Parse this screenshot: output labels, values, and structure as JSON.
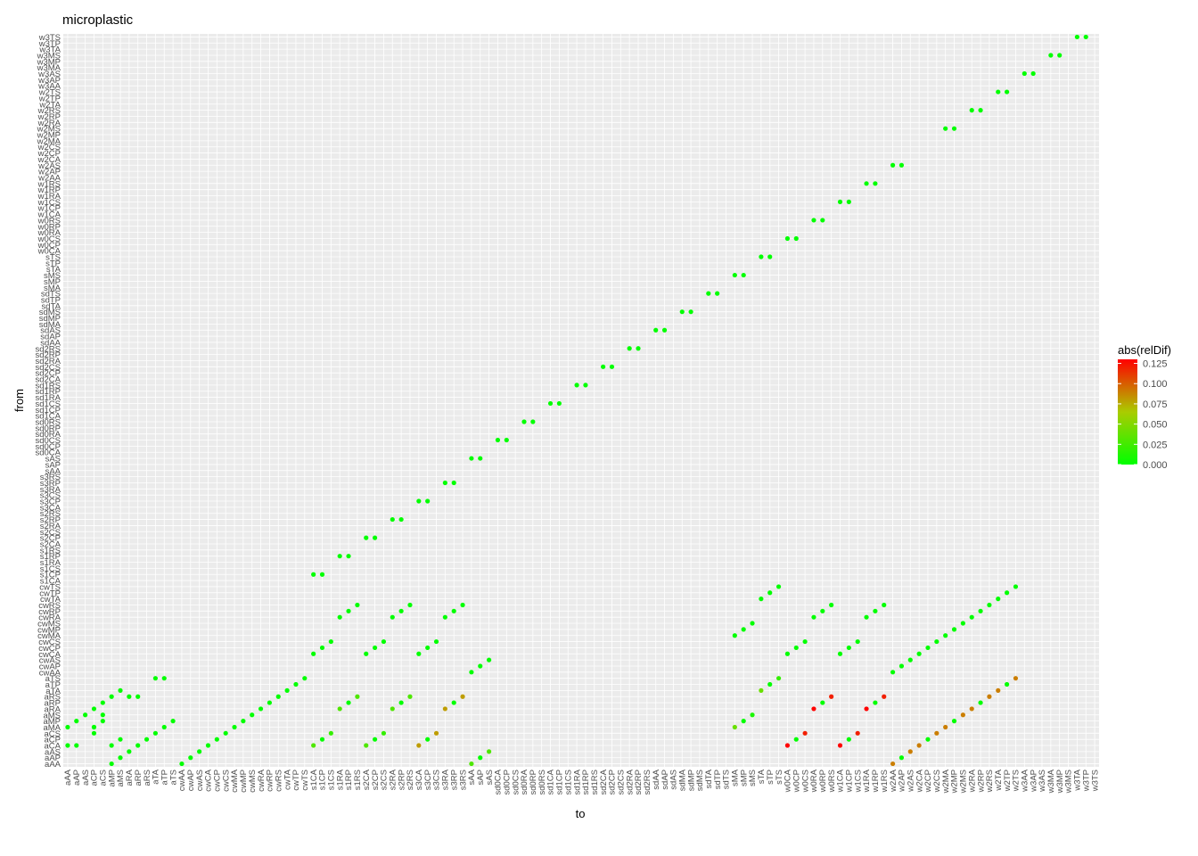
{
  "chart_data": {
    "type": "scatter",
    "title": "microplastic",
    "xlabel": "to",
    "ylabel": "from",
    "legend": {
      "title": "abs(relDif)",
      "position": "right",
      "ticks": [
        "0.000",
        "0.025",
        "0.050",
        "0.075",
        "0.100",
        "0.125"
      ],
      "tick_values": [
        0,
        0.025,
        0.05,
        0.075,
        0.1,
        0.125
      ],
      "range": [
        0,
        0.13
      ],
      "colors": [
        "#00ff00",
        "#aacc00",
        "#ff0000"
      ]
    },
    "panel_background": "#ebebeb",
    "grid": true,
    "x_categories": [
      "aAA",
      "aAP",
      "aAS",
      "aCP",
      "aCS",
      "aMP",
      "aMS",
      "aRA",
      "aRP",
      "aRS",
      "aTA",
      "aTP",
      "aTS",
      "cwAA",
      "cwAP",
      "cwAS",
      "cwCA",
      "cwCP",
      "cwCS",
      "cwMA",
      "cwMP",
      "cwMS",
      "cwRA",
      "cwRP",
      "cwRS",
      "cwTA",
      "cwTP",
      "cwTS",
      "s1CA",
      "s1CP",
      "s1CS",
      "s1RA",
      "s1RP",
      "s1RS",
      "s2CA",
      "s2CP",
      "s2CS",
      "s2RA",
      "s2RP",
      "s2RS",
      "s3CA",
      "s3CP",
      "s3CS",
      "s3RA",
      "s3RP",
      "s3RS",
      "sAA",
      "sAP",
      "sAS",
      "sd0CA",
      "sd0CP",
      "sd0CS",
      "sd0RA",
      "sd0RP",
      "sd0RS",
      "sd1CA",
      "sd1CP",
      "sd1CS",
      "sd1RA",
      "sd1RP",
      "sd1RS",
      "sd2CA",
      "sd2CP",
      "sd2CS",
      "sd2RA",
      "sd2RP",
      "sd2RS",
      "sdAA",
      "sdAP",
      "sdAS",
      "sdMA",
      "sdMP",
      "sdMS",
      "sdTA",
      "sdTP",
      "sdTS",
      "sMA",
      "sMP",
      "sMS",
      "sTA",
      "sTP",
      "sTS",
      "w0CA",
      "w0CP",
      "w0CS",
      "w0RA",
      "w0RP",
      "w0RS",
      "w1CA",
      "w1CP",
      "w1CS",
      "w1RA",
      "w1RP",
      "w1RS",
      "w2AA",
      "w2AP",
      "w2AS",
      "w2CA",
      "w2CP",
      "w2CS",
      "w2MA",
      "w2MP",
      "w2MS",
      "w2RA",
      "w2RP",
      "w2RS",
      "w2TA",
      "w2TP",
      "w2TS",
      "w3AA",
      "w3AP",
      "w3AS",
      "w3MA",
      "w3MP",
      "w3MS",
      "w3TA",
      "w3TP",
      "w3TS"
    ],
    "y_categories": [
      "aAA",
      "aAP",
      "aAS",
      "aCA",
      "aCP",
      "aCS",
      "aMA",
      "aMP",
      "aMS",
      "aRA",
      "aRP",
      "aRS",
      "aTA",
      "aTP",
      "aTS",
      "cwAA",
      "cwAP",
      "cwAS",
      "cwCA",
      "cwCP",
      "cwCS",
      "cwMA",
      "cwMP",
      "cwMS",
      "cwRA",
      "cwRP",
      "cwRS",
      "cwTA",
      "cwTP",
      "cwTS",
      "s1CA",
      "s1CP",
      "s1CS",
      "s1RA",
      "s1RP",
      "s1RS",
      "s2CA",
      "s2CP",
      "s2CS",
      "s2RA",
      "s2RP",
      "s2RS",
      "s3CA",
      "s3CP",
      "s3CS",
      "s3RA",
      "s3RP",
      "s3RS",
      "sAA",
      "sAP",
      "sAS",
      "sd0CA",
      "sd0CP",
      "sd0CS",
      "sd0RA",
      "sd0RP",
      "sd0RS",
      "sd1CA",
      "sd1CP",
      "sd1CS",
      "sd1RA",
      "sd1RP",
      "sd1RS",
      "sd2CA",
      "sd2CP",
      "sd2CS",
      "sd2RA",
      "sd2RP",
      "sd2RS",
      "sdAA",
      "sdAP",
      "sdAS",
      "sdMA",
      "sdMP",
      "sdMS",
      "sdTA",
      "sdTP",
      "sdTS",
      "sMA",
      "sMP",
      "sMS",
      "sTA",
      "sTP",
      "sTS",
      "w0CA",
      "w0CP",
      "w0CS",
      "w0RA",
      "w0RP",
      "w0RS",
      "w1CA",
      "w1CP",
      "w1CS",
      "w1RA",
      "w1RP",
      "w1RS",
      "w2AA",
      "w2AP",
      "w2AS",
      "w2CA",
      "w2CP",
      "w2CS",
      "w2MA",
      "w2MP",
      "w2MS",
      "w2RA",
      "w2RP",
      "w2RS",
      "w2TA",
      "w2TP",
      "w2TS",
      "w3AA",
      "w3AP",
      "w3AS",
      "w3MA",
      "w3MP",
      "w3MS",
      "w3TA",
      "w3TP",
      "w3TS"
    ],
    "points": [
      {
        "x": "aAA",
        "y": "aMA",
        "v": 0
      },
      {
        "x": "aAA",
        "y": "aCA",
        "v": 0
      },
      {
        "x": "aAP",
        "y": "aCA",
        "v": 0
      },
      {
        "x": "aAP",
        "y": "aMP",
        "v": 0
      },
      {
        "x": "aAS",
        "y": "aMS",
        "v": 0
      },
      {
        "x": "aCP",
        "y": "aCS",
        "v": 0
      },
      {
        "x": "aCP",
        "y": "aMA",
        "v": 0
      },
      {
        "x": "aCP",
        "y": "aMA",
        "v": 0
      },
      {
        "x": "aCP",
        "y": "aRA",
        "v": 0
      },
      {
        "x": "aCS",
        "y": "aMP",
        "v": 0
      },
      {
        "x": "aCS",
        "y": "aRP",
        "v": 0
      },
      {
        "x": "aCS",
        "y": "aMS",
        "v": 0
      },
      {
        "x": "aMP",
        "y": "aAA",
        "v": 0
      },
      {
        "x": "aMP",
        "y": "aCA",
        "v": 0
      },
      {
        "x": "aMP",
        "y": "aRS",
        "v": 0
      },
      {
        "x": "aMS",
        "y": "aAP",
        "v": 0
      },
      {
        "x": "aMS",
        "y": "aCP",
        "v": 0
      },
      {
        "x": "aMS",
        "y": "aTA",
        "v": 0
      },
      {
        "x": "aRA",
        "y": "aAS",
        "v": 0
      },
      {
        "x": "aRA",
        "y": "aRS",
        "v": 0
      },
      {
        "x": "aRP",
        "y": "aCA",
        "v": 0
      },
      {
        "x": "aRP",
        "y": "aRS",
        "v": 0
      },
      {
        "x": "aRS",
        "y": "aCP",
        "v": 0
      },
      {
        "x": "aTA",
        "y": "aCS",
        "v": 0
      },
      {
        "x": "aTA",
        "y": "aTS",
        "v": 0
      },
      {
        "x": "aTP",
        "y": "aMA",
        "v": 0
      },
      {
        "x": "aTP",
        "y": "aTS",
        "v": 0
      },
      {
        "x": "aTS",
        "y": "aMP",
        "v": 0
      },
      {
        "x": "cwAA",
        "y": "aAA",
        "v": 0
      },
      {
        "x": "cwAP",
        "y": "aAP",
        "v": 0
      },
      {
        "x": "cwAS",
        "y": "aAS",
        "v": 0
      },
      {
        "x": "cwCA",
        "y": "aCA",
        "v": 0
      },
      {
        "x": "cwCP",
        "y": "aCP",
        "v": 0
      },
      {
        "x": "cwCS",
        "y": "aCS",
        "v": 0
      },
      {
        "x": "cwMA",
        "y": "aMA",
        "v": 0
      },
      {
        "x": "cwMP",
        "y": "aMP",
        "v": 0
      },
      {
        "x": "cwMS",
        "y": "aMS",
        "v": 0
      },
      {
        "x": "cwRA",
        "y": "aRA",
        "v": 0
      },
      {
        "x": "cwRP",
        "y": "aRP",
        "v": 0
      },
      {
        "x": "cwRS",
        "y": "aRS",
        "v": 0
      },
      {
        "x": "cwTA",
        "y": "aTA",
        "v": 0
      },
      {
        "x": "cwTP",
        "y": "aTP",
        "v": 0
      },
      {
        "x": "cwTS",
        "y": "aTS",
        "v": 0
      },
      {
        "x": "s1CA",
        "y": "aCA",
        "v": 0.03
      },
      {
        "x": "s1CP",
        "y": "aCP",
        "v": 0
      },
      {
        "x": "s1CS",
        "y": "aCS",
        "v": 0.02
      },
      {
        "x": "s1RA",
        "y": "aRA",
        "v": 0.03
      },
      {
        "x": "s1RP",
        "y": "aRP",
        "v": 0
      },
      {
        "x": "s1RS",
        "y": "aRS",
        "v": 0.03
      },
      {
        "x": "s2CA",
        "y": "aCA",
        "v": 0.03
      },
      {
        "x": "s2CP",
        "y": "aCP",
        "v": 0
      },
      {
        "x": "s2CS",
        "y": "aCS",
        "v": 0.02
      },
      {
        "x": "s2RA",
        "y": "aRA",
        "v": 0.03
      },
      {
        "x": "s2RP",
        "y": "aRP",
        "v": 0
      },
      {
        "x": "s2RS",
        "y": "aRS",
        "v": 0.03
      },
      {
        "x": "s3CA",
        "y": "aCA",
        "v": 0.08
      },
      {
        "x": "s3CP",
        "y": "aCP",
        "v": 0
      },
      {
        "x": "s3CS",
        "y": "aCS",
        "v": 0.08
      },
      {
        "x": "s3RA",
        "y": "aRA",
        "v": 0.08
      },
      {
        "x": "s3RP",
        "y": "aRP",
        "v": 0
      },
      {
        "x": "s3RS",
        "y": "aRS",
        "v": 0.08
      },
      {
        "x": "sAA",
        "y": "aAA",
        "v": 0.03
      },
      {
        "x": "sAP",
        "y": "aAP",
        "v": 0
      },
      {
        "x": "sAS",
        "y": "aAS",
        "v": 0.03
      },
      {
        "x": "s1CA",
        "y": "cwCA",
        "v": 0
      },
      {
        "x": "s1CP",
        "y": "cwCP",
        "v": 0
      },
      {
        "x": "s1CS",
        "y": "cwCS",
        "v": 0
      },
      {
        "x": "s1RA",
        "y": "cwRA",
        "v": 0
      },
      {
        "x": "s1RP",
        "y": "cwRP",
        "v": 0
      },
      {
        "x": "s1RS",
        "y": "cwRS",
        "v": 0
      },
      {
        "x": "s2CA",
        "y": "cwCA",
        "v": 0
      },
      {
        "x": "s2CP",
        "y": "cwCP",
        "v": 0
      },
      {
        "x": "s2CS",
        "y": "cwCS",
        "v": 0
      },
      {
        "x": "s2RA",
        "y": "cwRA",
        "v": 0
      },
      {
        "x": "s2RP",
        "y": "cwRP",
        "v": 0
      },
      {
        "x": "s2RS",
        "y": "cwRS",
        "v": 0
      },
      {
        "x": "s3CA",
        "y": "cwCA",
        "v": 0
      },
      {
        "x": "s3CP",
        "y": "cwCP",
        "v": 0
      },
      {
        "x": "s3CS",
        "y": "cwCS",
        "v": 0
      },
      {
        "x": "s3RA",
        "y": "cwRA",
        "v": 0
      },
      {
        "x": "s3RP",
        "y": "cwRP",
        "v": 0
      },
      {
        "x": "s3RS",
        "y": "cwRS",
        "v": 0
      },
      {
        "x": "sAA",
        "y": "cwAA",
        "v": 0
      },
      {
        "x": "sAP",
        "y": "cwAP",
        "v": 0
      },
      {
        "x": "sAS",
        "y": "cwAS",
        "v": 0
      },
      {
        "x": "s1CA",
        "y": "s1CP",
        "v": 0
      },
      {
        "x": "s1CP",
        "y": "s1CP",
        "v": 0
      },
      {
        "x": "s1RA",
        "y": "s1RP",
        "v": 0
      },
      {
        "x": "s1RP",
        "y": "s1RP",
        "v": 0
      },
      {
        "x": "s2CA",
        "y": "s2CP",
        "v": 0
      },
      {
        "x": "s2CP",
        "y": "s2CP",
        "v": 0
      },
      {
        "x": "s2RA",
        "y": "s2RP",
        "v": 0
      },
      {
        "x": "s2RP",
        "y": "s2RP",
        "v": 0
      },
      {
        "x": "s3CA",
        "y": "s3CP",
        "v": 0
      },
      {
        "x": "s3CP",
        "y": "s3CP",
        "v": 0
      },
      {
        "x": "s3RA",
        "y": "s3RP",
        "v": 0
      },
      {
        "x": "s3RP",
        "y": "s3RP",
        "v": 0
      },
      {
        "x": "sAA",
        "y": "sAS",
        "v": 0
      },
      {
        "x": "sAP",
        "y": "sAS",
        "v": 0
      },
      {
        "x": "sd0CA",
        "y": "sd0CS",
        "v": 0
      },
      {
        "x": "sd0CP",
        "y": "sd0CS",
        "v": 0
      },
      {
        "x": "sd0RA",
        "y": "sd0RS",
        "v": 0
      },
      {
        "x": "sd0RP",
        "y": "sd0RS",
        "v": 0
      },
      {
        "x": "sd1CA",
        "y": "sd1CS",
        "v": 0
      },
      {
        "x": "sd1CP",
        "y": "sd1CS",
        "v": 0
      },
      {
        "x": "sd1RA",
        "y": "sd1RS",
        "v": 0
      },
      {
        "x": "sd1RP",
        "y": "sd1RS",
        "v": 0
      },
      {
        "x": "sd2CA",
        "y": "sd2CS",
        "v": 0
      },
      {
        "x": "sd2CP",
        "y": "sd2CS",
        "v": 0
      },
      {
        "x": "sd2RA",
        "y": "sd2RS",
        "v": 0
      },
      {
        "x": "sd2RP",
        "y": "sd2RS",
        "v": 0
      },
      {
        "x": "sdAA",
        "y": "sdAS",
        "v": 0
      },
      {
        "x": "sdAP",
        "y": "sdAS",
        "v": 0
      },
      {
        "x": "sdMA",
        "y": "sdMS",
        "v": 0
      },
      {
        "x": "sdMP",
        "y": "sdMS",
        "v": 0
      },
      {
        "x": "sdTA",
        "y": "sdTS",
        "v": 0
      },
      {
        "x": "sdTP",
        "y": "sdTS",
        "v": 0
      },
      {
        "x": "sMA",
        "y": "sMS",
        "v": 0
      },
      {
        "x": "sMP",
        "y": "sMS",
        "v": 0
      },
      {
        "x": "sTA",
        "y": "sTS",
        "v": 0
      },
      {
        "x": "sTP",
        "y": "sTS",
        "v": 0
      },
      {
        "x": "w0CA",
        "y": "w0CS",
        "v": 0
      },
      {
        "x": "w0CP",
        "y": "w0CS",
        "v": 0
      },
      {
        "x": "w0RA",
        "y": "w0RS",
        "v": 0
      },
      {
        "x": "w0RP",
        "y": "w0RS",
        "v": 0
      },
      {
        "x": "w1CA",
        "y": "w1CS",
        "v": 0
      },
      {
        "x": "w1CP",
        "y": "w1CS",
        "v": 0
      },
      {
        "x": "w1RA",
        "y": "w1RS",
        "v": 0
      },
      {
        "x": "w1RP",
        "y": "w1RS",
        "v": 0
      },
      {
        "x": "w2AA",
        "y": "w2AS",
        "v": 0
      },
      {
        "x": "w2AP",
        "y": "w2AS",
        "v": 0
      },
      {
        "x": "w2MA",
        "y": "w2MS",
        "v": 0
      },
      {
        "x": "w2MP",
        "y": "w2MS",
        "v": 0
      },
      {
        "x": "w2RA",
        "y": "w2RS",
        "v": 0
      },
      {
        "x": "w2RP",
        "y": "w2RS",
        "v": 0
      },
      {
        "x": "w2TA",
        "y": "w2TS",
        "v": 0
      },
      {
        "x": "w2TP",
        "y": "w2TS",
        "v": 0
      },
      {
        "x": "w3AA",
        "y": "w3AS",
        "v": 0
      },
      {
        "x": "w3AP",
        "y": "w3AS",
        "v": 0
      },
      {
        "x": "w3MA",
        "y": "w3MS",
        "v": 0
      },
      {
        "x": "w3MP",
        "y": "w3MS",
        "v": 0
      },
      {
        "x": "w3TA",
        "y": "w3TS",
        "v": 0
      },
      {
        "x": "w3TP",
        "y": "w3TS",
        "v": 0
      },
      {
        "x": "sMA",
        "y": "aMA",
        "v": 0.04
      },
      {
        "x": "sMP",
        "y": "aMP",
        "v": 0
      },
      {
        "x": "sMS",
        "y": "aMS",
        "v": 0.01
      },
      {
        "x": "sTA",
        "y": "aTA",
        "v": 0.04
      },
      {
        "x": "sTP",
        "y": "aTP",
        "v": 0
      },
      {
        "x": "sTS",
        "y": "aTS",
        "v": 0.02
      },
      {
        "x": "w0CA",
        "y": "aCA",
        "v": 0.13
      },
      {
        "x": "w0CP",
        "y": "aCP",
        "v": 0
      },
      {
        "x": "w0CS",
        "y": "aCS",
        "v": 0.12
      },
      {
        "x": "w0RA",
        "y": "aRA",
        "v": 0.13
      },
      {
        "x": "w0RP",
        "y": "aRP",
        "v": 0
      },
      {
        "x": "w0RS",
        "y": "aRS",
        "v": 0.12
      },
      {
        "x": "w1CA",
        "y": "aCA",
        "v": 0.13
      },
      {
        "x": "w1CP",
        "y": "aCP",
        "v": 0
      },
      {
        "x": "w1CS",
        "y": "aCS",
        "v": 0.12
      },
      {
        "x": "w1RA",
        "y": "aRA",
        "v": 0.13
      },
      {
        "x": "w1RP",
        "y": "aRP",
        "v": 0
      },
      {
        "x": "w1RS",
        "y": "aRS",
        "v": 0.12
      },
      {
        "x": "w2AA",
        "y": "aAA",
        "v": 0.09
      },
      {
        "x": "w2AP",
        "y": "aAP",
        "v": 0
      },
      {
        "x": "w2AS",
        "y": "aAS",
        "v": 0.09
      },
      {
        "x": "w2CA",
        "y": "aCA",
        "v": 0.09
      },
      {
        "x": "w2CP",
        "y": "aCP",
        "v": 0
      },
      {
        "x": "w2CS",
        "y": "aCS",
        "v": 0.09
      },
      {
        "x": "w2MA",
        "y": "aMA",
        "v": 0.09
      },
      {
        "x": "w2MP",
        "y": "aMP",
        "v": 0
      },
      {
        "x": "w2MS",
        "y": "aMS",
        "v": 0.09
      },
      {
        "x": "w2RA",
        "y": "aRA",
        "v": 0.09
      },
      {
        "x": "w2RP",
        "y": "aRP",
        "v": 0
      },
      {
        "x": "w2RS",
        "y": "aRS",
        "v": 0.09
      },
      {
        "x": "w2TA",
        "y": "aTA",
        "v": 0.09
      },
      {
        "x": "w2TP",
        "y": "aTP",
        "v": 0
      },
      {
        "x": "w2TS",
        "y": "aTS",
        "v": 0.09
      },
      {
        "x": "sMA",
        "y": "cwMA",
        "v": 0
      },
      {
        "x": "sMP",
        "y": "cwMP",
        "v": 0
      },
      {
        "x": "sMS",
        "y": "cwMS",
        "v": 0
      },
      {
        "x": "sTA",
        "y": "cwTA",
        "v": 0
      },
      {
        "x": "sTP",
        "y": "cwTP",
        "v": 0
      },
      {
        "x": "sTS",
        "y": "cwTS",
        "v": 0
      },
      {
        "x": "w0CA",
        "y": "cwCA",
        "v": 0
      },
      {
        "x": "w0CP",
        "y": "cwCP",
        "v": 0
      },
      {
        "x": "w0CS",
        "y": "cwCS",
        "v": 0
      },
      {
        "x": "w0RA",
        "y": "cwRA",
        "v": 0
      },
      {
        "x": "w0RP",
        "y": "cwRP",
        "v": 0
      },
      {
        "x": "w0RS",
        "y": "cwRS",
        "v": 0
      },
      {
        "x": "w1CA",
        "y": "cwCA",
        "v": 0
      },
      {
        "x": "w1CP",
        "y": "cwCP",
        "v": 0
      },
      {
        "x": "w1CS",
        "y": "cwCS",
        "v": 0
      },
      {
        "x": "w1RA",
        "y": "cwRA",
        "v": 0
      },
      {
        "x": "w1RP",
        "y": "cwRP",
        "v": 0
      },
      {
        "x": "w1RS",
        "y": "cwRS",
        "v": 0
      },
      {
        "x": "w2AA",
        "y": "cwAA",
        "v": 0
      },
      {
        "x": "w2AP",
        "y": "cwAP",
        "v": 0
      },
      {
        "x": "w2AS",
        "y": "cwAS",
        "v": 0
      },
      {
        "x": "w2CA",
        "y": "cwCA",
        "v": 0
      },
      {
        "x": "w2CP",
        "y": "cwCP",
        "v": 0
      },
      {
        "x": "w2CS",
        "y": "cwCS",
        "v": 0
      },
      {
        "x": "w2MA",
        "y": "cwMA",
        "v": 0
      },
      {
        "x": "w2MP",
        "y": "cwMP",
        "v": 0
      },
      {
        "x": "w2MS",
        "y": "cwMS",
        "v": 0
      },
      {
        "x": "w2RA",
        "y": "cwRA",
        "v": 0
      },
      {
        "x": "w2RP",
        "y": "cwRP",
        "v": 0
      },
      {
        "x": "w2RS",
        "y": "cwRS",
        "v": 0
      },
      {
        "x": "w2TA",
        "y": "cwTA",
        "v": 0
      },
      {
        "x": "w2TP",
        "y": "cwTP",
        "v": 0
      },
      {
        "x": "w2TS",
        "y": "cwTS",
        "v": 0
      }
    ]
  }
}
